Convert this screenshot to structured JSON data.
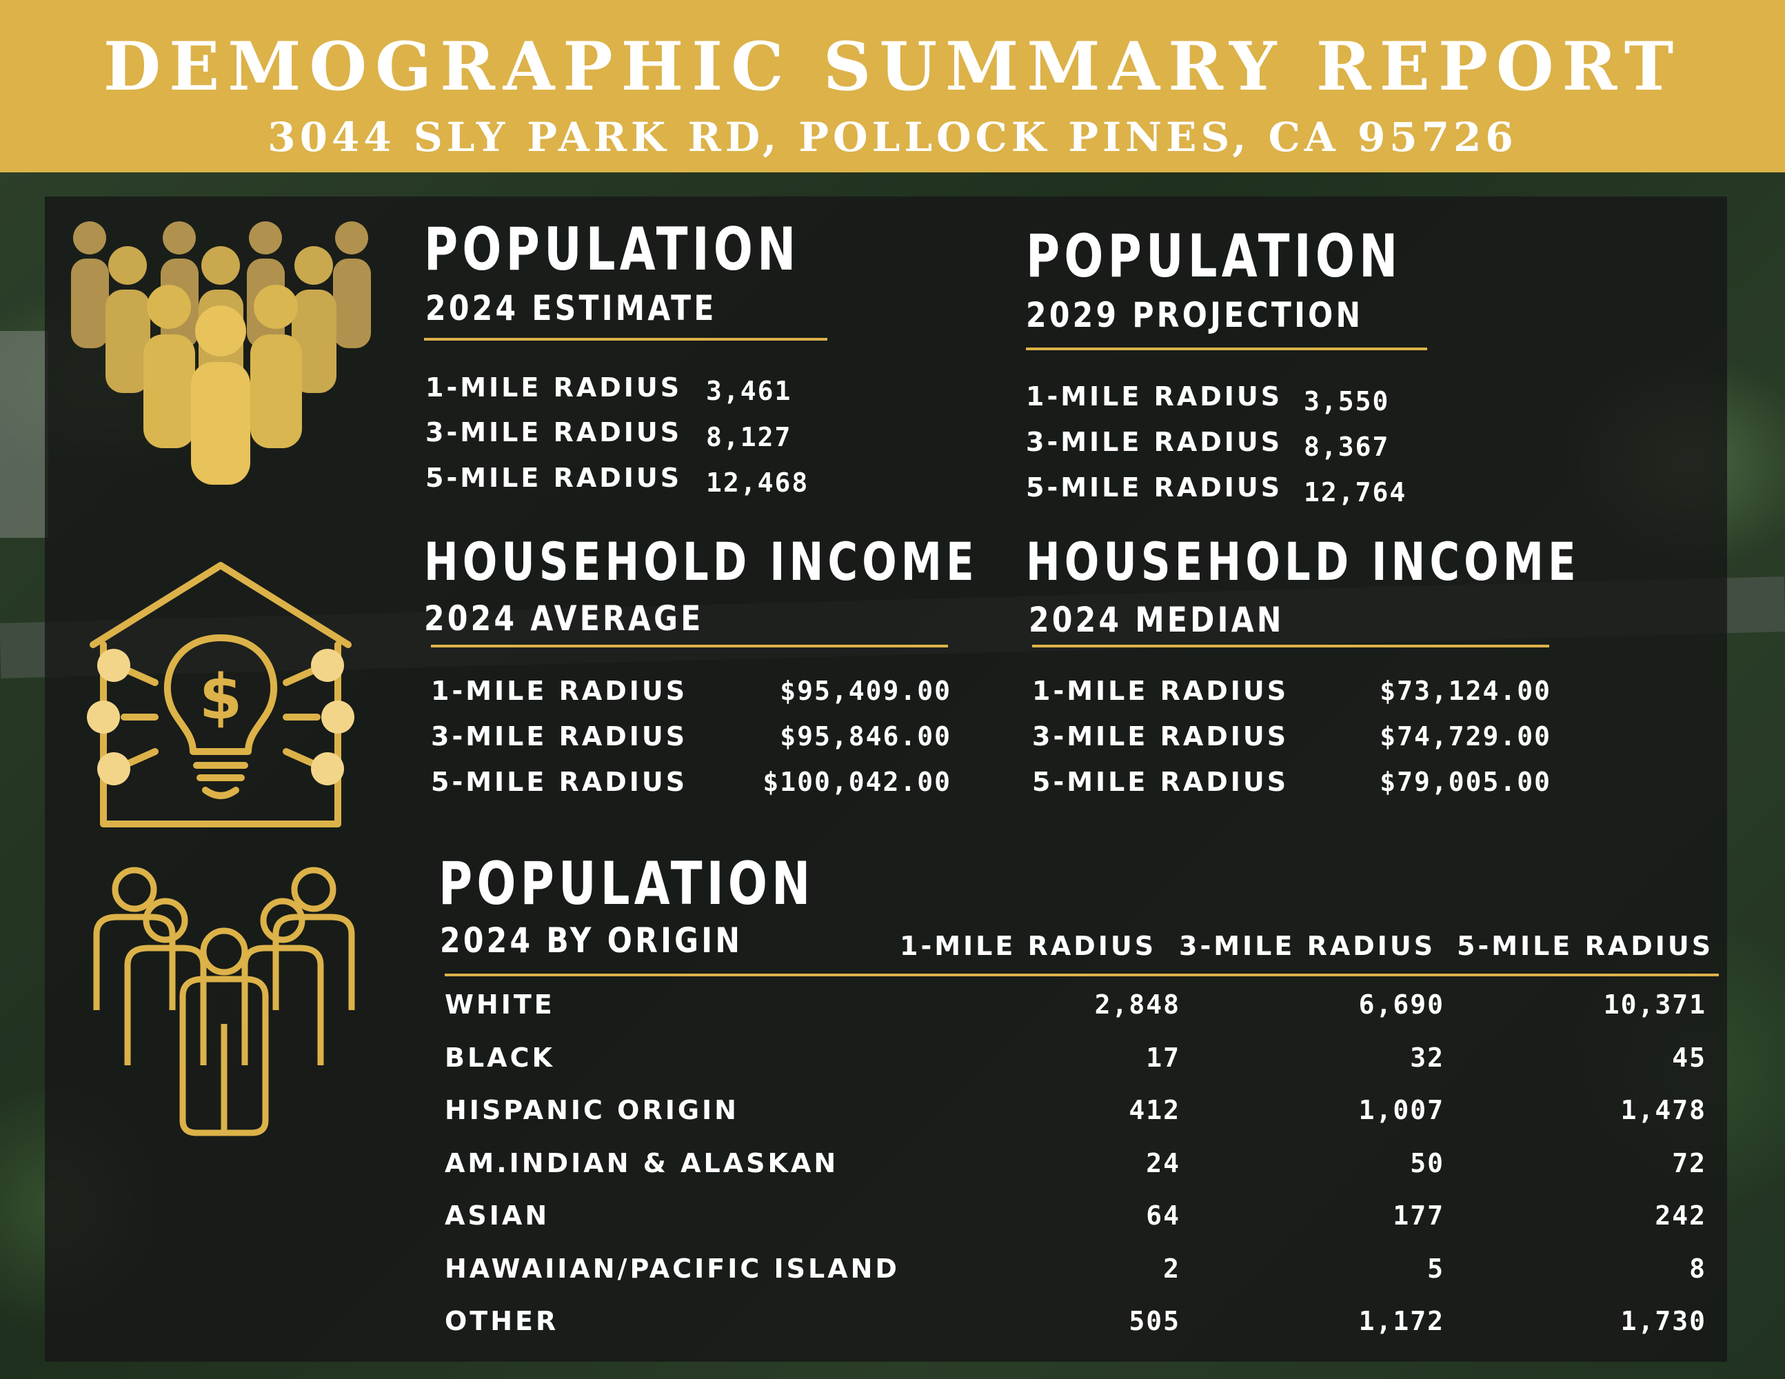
{
  "header": {
    "title": "DEMOGRAPHIC SUMMARY REPORT",
    "address": "3044 SLY PARK RD, POLLOCK PINES, CA 95726"
  },
  "colors": {
    "gold": "#dcb249",
    "panel": "#161616"
  },
  "icons": [
    "people-crowd-icon",
    "house-lightbulb-dollar-icon",
    "people-outline-icon"
  ],
  "pop2024": {
    "title": "POPULATION",
    "subtitle": "2024 ESTIMATE",
    "rows": [
      {
        "label": "1-MILE RADIUS",
        "value": "3,461"
      },
      {
        "label": "3-MILE RADIUS",
        "value": "8,127"
      },
      {
        "label": "5-MILE RADIUS",
        "value": "12,468"
      }
    ]
  },
  "pop2029": {
    "title": "POPULATION",
    "subtitle": "2029 PROJECTION",
    "rows": [
      {
        "label": "1-MILE RADIUS",
        "value": "3,550"
      },
      {
        "label": "3-MILE RADIUS",
        "value": "8,367"
      },
      {
        "label": "5-MILE RADIUS",
        "value": "12,764"
      }
    ]
  },
  "incomeAvg": {
    "title": "HOUSEHOLD INCOME",
    "subtitle": "2024 AVERAGE",
    "rows": [
      {
        "label": "1-MILE RADIUS",
        "value": "$95,409.00"
      },
      {
        "label": "3-MILE RADIUS",
        "value": "$95,846.00"
      },
      {
        "label": "5-MILE RADIUS",
        "value": "$100,042.00"
      }
    ]
  },
  "incomeMed": {
    "title": "HOUSEHOLD INCOME",
    "subtitle": "2024 MEDIAN",
    "rows": [
      {
        "label": "1-MILE RADIUS",
        "value": "$73,124.00"
      },
      {
        "label": "3-MILE RADIUS",
        "value": "$74,729.00"
      },
      {
        "label": "5-MILE RADIUS",
        "value": "$79,005.00"
      }
    ]
  },
  "origin": {
    "title": "POPULATION",
    "subtitle": "2024 BY ORIGIN",
    "columns": [
      "1-MILE RADIUS",
      "3-MILE RADIUS",
      "5-MILE RADIUS"
    ],
    "rows": [
      {
        "label": "WHITE",
        "values": [
          "2,848",
          "6,690",
          "10,371"
        ]
      },
      {
        "label": "BLACK",
        "values": [
          "17",
          "32",
          "45"
        ]
      },
      {
        "label": "HISPANIC ORIGIN",
        "values": [
          "412",
          "1,007",
          "1,478"
        ]
      },
      {
        "label": "AM.INDIAN & ALASKAN",
        "values": [
          "24",
          "50",
          "72"
        ]
      },
      {
        "label": "ASIAN",
        "values": [
          "64",
          "177",
          "242"
        ]
      },
      {
        "label": "HAWAIIAN/PACIFIC ISLAND",
        "values": [
          "2",
          "5",
          "8"
        ]
      },
      {
        "label": "OTHER",
        "values": [
          "505",
          "1,172",
          "1,730"
        ]
      }
    ]
  }
}
